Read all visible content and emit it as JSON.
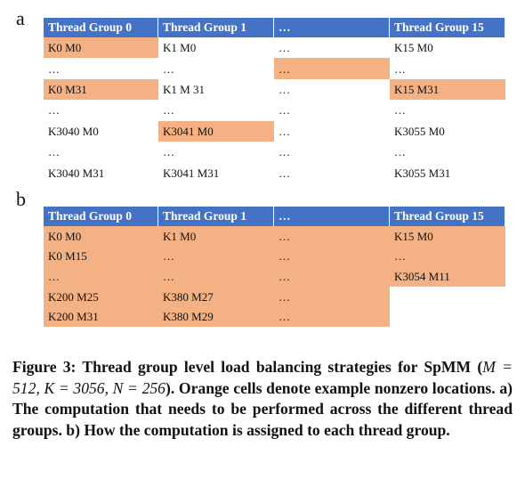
{
  "panel_a": {
    "label": "a",
    "headers": [
      "Thread Group 0",
      "Thread Group 1",
      "…",
      "Thread Group 15"
    ],
    "rows": [
      [
        "K0 M0",
        "K1 M0",
        "…",
        "K15 M0"
      ],
      [
        "…",
        "…",
        "…",
        "…"
      ],
      [
        "K0 M31",
        "K1 M 31",
        "…",
        "K15 M31"
      ],
      [
        "…",
        "…",
        "…",
        "…"
      ],
      [
        "K3040 M0",
        "K3041 M0",
        "…",
        "K3055 M0"
      ],
      [
        "…",
        "…",
        "…",
        "…"
      ],
      [
        "K3040 M31",
        "K3041 M31",
        "…",
        "K3055 M31"
      ]
    ],
    "orange": [
      [
        0,
        0
      ],
      [
        1,
        2
      ],
      [
        2,
        0
      ],
      [
        2,
        3
      ],
      [
        4,
        1
      ]
    ]
  },
  "panel_b": {
    "label": "b",
    "headers": [
      "Thread Group 0",
      "Thread Group 1",
      "…",
      "Thread Group 15"
    ],
    "rows": [
      [
        "K0 M0",
        "K1 M0",
        "…",
        "K15 M0"
      ],
      [
        "K0 M15",
        "…",
        "…",
        "…"
      ],
      [
        "…",
        "…",
        "…",
        "K3054 M11"
      ],
      [
        "K200 M25",
        "K380 M27",
        "…",
        ""
      ],
      [
        "K200 M31",
        "K380 M29",
        "…",
        ""
      ]
    ],
    "orange": [
      [
        0,
        0
      ],
      [
        0,
        1
      ],
      [
        0,
        2
      ],
      [
        0,
        3
      ],
      [
        1,
        0
      ],
      [
        1,
        1
      ],
      [
        1,
        2
      ],
      [
        1,
        3
      ],
      [
        2,
        0
      ],
      [
        2,
        1
      ],
      [
        2,
        2
      ],
      [
        2,
        3
      ],
      [
        3,
        0
      ],
      [
        3,
        1
      ],
      [
        3,
        2
      ],
      [
        4,
        0
      ],
      [
        4,
        1
      ],
      [
        4,
        2
      ]
    ]
  },
  "colors": {
    "header": "#4472c4",
    "orange": "#f4b183"
  },
  "caption": {
    "figure": "Figure 3:",
    "text1": "Thread group level load balancing strategies for SpMM (",
    "math": "M = 512, K = 3056, N = 256",
    "text2": "). Orange cells denote example nonzero locations. a) The computation that needs to be performed across the different thread groups. b) How the computation is assigned to each thread group."
  }
}
